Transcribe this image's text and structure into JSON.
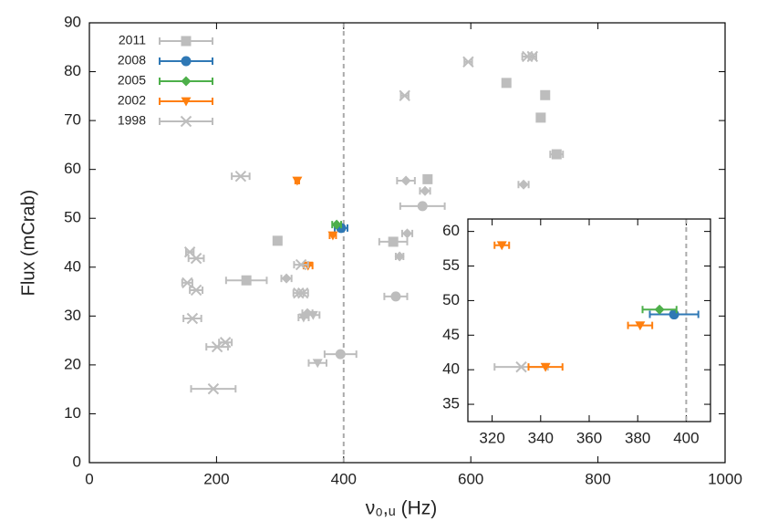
{
  "chart_data": [
    {
      "type": "scatter",
      "x_label": "ν₀,ᵤ (Hz)",
      "y_label": "Flux (mCrab)",
      "xlim": [
        0,
        1000
      ],
      "ylim": [
        0,
        90
      ],
      "xticks": [
        0,
        200,
        400,
        600,
        800,
        1000
      ],
      "yticks": [
        0,
        10,
        20,
        30,
        40,
        50,
        60,
        70,
        80,
        90
      ],
      "vline": 400,
      "legend": "upper left",
      "series": [
        {
          "name": "2011",
          "color": "#bdbdbd",
          "marker": "square",
          "x": [
            247,
            478,
            656,
            717,
            710,
            735,
            532,
            296
          ],
          "xerr": [
            32,
            22,
            6,
            6,
            6,
            10,
            6,
            6
          ],
          "values": [
            37.3,
            45.2,
            77.7,
            75.2,
            70.6,
            63.1,
            58,
            45.4
          ]
        },
        {
          "name": "2008",
          "color": "#2f78b5",
          "marker": "circle",
          "x": [
            396
          ],
          "xerr": [
            10
          ],
          "values": [
            48.0
          ]
        },
        {
          "name": "2005",
          "color": "#4daf4a",
          "marker": "diamond",
          "x": [
            389
          ],
          "xerr": [
            7
          ],
          "values": [
            48.7
          ]
        },
        {
          "name": "2002",
          "color": "#ff7f0e",
          "marker": "triangle",
          "x": [
            327,
            383,
            344
          ],
          "xerr": [
            3,
            5,
            7
          ],
          "values": [
            57.7,
            46.5,
            40.3
          ]
        },
        {
          "name": "1998",
          "color": "#bdbdbd",
          "marker": "x",
          "x": [
            238,
            158,
            168,
            154,
            168,
            162,
            214,
            201,
            195,
            329,
            336,
            496,
            333,
            689,
            697,
            596
          ],
          "xerr": [
            14,
            6,
            12,
            8,
            10,
            14,
            10,
            17,
            35,
            8,
            8,
            6,
            11,
            8,
            6,
            6
          ],
          "values": [
            58.6,
            43.1,
            41.8,
            36.8,
            35.3,
            29.5,
            24.6,
            23.7,
            15.1,
            34.7,
            34.7,
            75.1,
            40.5,
            83.1,
            83.1,
            82.0
          ]
        },
        {
          "color": "#bdbdbd",
          "marker": "triangle",
          "x": [
            359,
            337,
            352
          ],
          "xerr": [
            14,
            8,
            10
          ],
          "values": [
            20.4,
            29.7,
            30.2
          ]
        },
        {
          "color": "#bdbdbd",
          "marker": "circle",
          "x": [
            524,
            395,
            482
          ],
          "xerr": [
            35,
            25,
            18
          ],
          "values": [
            52.5,
            22.2,
            34.0
          ]
        },
        {
          "color": "#bdbdbd",
          "marker": "diamond",
          "x": [
            498,
            528,
            500,
            488,
            683,
            310,
            343
          ],
          "xerr": [
            14,
            8,
            8,
            6,
            8,
            8,
            8
          ],
          "values": [
            57.7,
            55.6,
            46.9,
            42.2,
            56.9,
            37.7,
            30.6
          ]
        }
      ]
    },
    {
      "type": "scatter",
      "xlim": [
        310,
        410
      ],
      "ylim": [
        32.5,
        61.8
      ],
      "xticks": [
        320,
        340,
        360,
        380,
        400
      ],
      "yticks": [
        35,
        40,
        45,
        50,
        55,
        60
      ],
      "vline": 400,
      "series": [
        {
          "color": "#bdbdbd",
          "marker": "x",
          "x": [
            332
          ],
          "xerr": [
            11
          ],
          "values": [
            40.4
          ]
        },
        {
          "color": "#2f78b5",
          "marker": "circle",
          "x": [
            395
          ],
          "xerr": [
            10
          ],
          "values": [
            48.0
          ]
        },
        {
          "color": "#4daf4a",
          "marker": "diamond",
          "x": [
            389
          ],
          "xerr": [
            7
          ],
          "values": [
            48.7
          ]
        },
        {
          "color": "#ff7f0e",
          "marker": "triangle",
          "x": [
            324,
            381,
            342
          ],
          "xerr": [
            3,
            5,
            7
          ],
          "values": [
            58.0,
            46.4,
            40.4
          ]
        }
      ]
    }
  ]
}
